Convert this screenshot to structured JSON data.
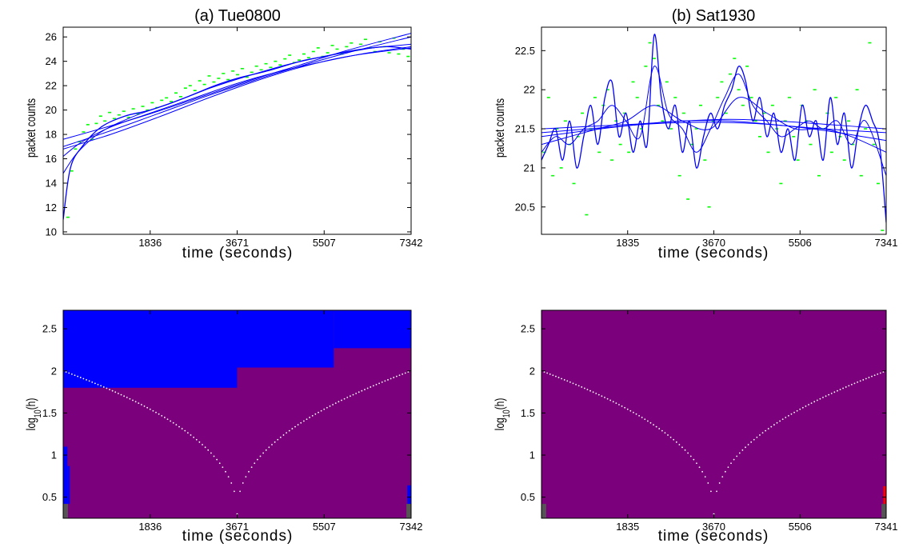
{
  "chart_data": [
    {
      "type": "scatter",
      "title": "(a) Tue0800",
      "xlabel": "time (seconds)",
      "ylabel": "packet counts",
      "xlim": [
        0,
        7342
      ],
      "ylim": [
        9.8,
        26.8
      ],
      "xticks": [
        1836,
        3671,
        5507,
        7342
      ],
      "yticks": [
        10,
        12,
        14,
        16,
        18,
        20,
        22,
        24,
        26
      ],
      "colors": {
        "points": "#00ff00",
        "curves": "#0000ff"
      },
      "points": {
        "name": "",
        "x": [
          100,
          180,
          260,
          340,
          430,
          520,
          610,
          700,
          790,
          880,
          980,
          1080,
          1180,
          1280,
          1380,
          1480,
          1580,
          1680,
          1780,
          1880,
          1980,
          2080,
          2180,
          2280,
          2380,
          2480,
          2580,
          2680,
          2780,
          2880,
          2980,
          3080,
          3180,
          3280,
          3380,
          3480,
          3580,
          3680,
          3780,
          3880,
          3980,
          4080,
          4180,
          4280,
          4380,
          4480,
          4580,
          4680,
          4780,
          4880,
          4980,
          5080,
          5180,
          5280,
          5380,
          5480,
          5580,
          5680,
          5780,
          5880,
          5980,
          6080,
          6180,
          6280,
          6380,
          6480,
          6580,
          6680,
          6780,
          6880,
          6980,
          7080,
          7180,
          7280
        ],
        "y": [
          11.2,
          15.0,
          16.8,
          17.4,
          18.2,
          18.8,
          17.6,
          18.9,
          19.5,
          19.1,
          19.8,
          19.3,
          19.6,
          19.9,
          19.4,
          20.1,
          19.7,
          20.3,
          20.0,
          20.6,
          20.2,
          20.8,
          21.0,
          20.7,
          21.4,
          21.1,
          21.8,
          22.0,
          21.6,
          22.4,
          22.1,
          22.8,
          22.3,
          22.6,
          23.0,
          22.5,
          23.2,
          22.9,
          23.4,
          22.7,
          23.1,
          23.6,
          23.3,
          23.8,
          23.5,
          24.0,
          23.7,
          24.2,
          24.5,
          23.9,
          24.1,
          24.6,
          24.3,
          24.8,
          25.1,
          24.4,
          24.7,
          25.3,
          25.0,
          24.6,
          25.2,
          25.5,
          24.9,
          25.4,
          25.8,
          25.1,
          24.8,
          25.6,
          25.2,
          24.7,
          25.9,
          24.6,
          25.0,
          24.4
        ]
      },
      "smooths": [
        {
          "name": "",
          "x": [
            0,
            150,
            400,
            800,
            1300,
            1836,
            2500,
            3200,
            3671,
            4300,
            5000,
            5507,
            6200,
            6800,
            7342
          ],
          "y": [
            11.0,
            15.2,
            17.0,
            18.6,
            19.5,
            20.0,
            20.9,
            22.0,
            22.6,
            23.2,
            24.0,
            24.4,
            24.9,
            25.2,
            25.0
          ]
        },
        {
          "name": "",
          "x": [
            0,
            300,
            800,
            1500,
            2300,
            3100,
            3900,
            4700,
            5500,
            6300,
            7342
          ],
          "y": [
            14.8,
            16.5,
            18.2,
            19.5,
            20.6,
            21.8,
            22.8,
            23.7,
            24.4,
            25.0,
            25.4
          ]
        },
        {
          "name": "",
          "x": [
            0,
            400,
            1000,
            1800,
            2700,
            3600,
            4500,
            5400,
            6300,
            7342
          ],
          "y": [
            16.2,
            17.4,
            18.6,
            19.7,
            20.9,
            22.1,
            23.1,
            23.9,
            24.6,
            25.2
          ]
        },
        {
          "name": "",
          "x": [
            0,
            1000,
            2000,
            3000,
            4000,
            5000,
            6000,
            7342
          ],
          "y": [
            17.0,
            18.3,
            19.7,
            21.1,
            22.4,
            23.6,
            24.7,
            26.0
          ]
        },
        {
          "name": "",
          "x": [
            0,
            1000,
            2000,
            3000,
            4000,
            5000,
            6000,
            7342
          ],
          "y": [
            17.6,
            18.7,
            19.9,
            21.2,
            22.5,
            23.7,
            24.9,
            26.3
          ]
        },
        {
          "name": "",
          "x": [
            0,
            1000,
            2000,
            3000,
            4000,
            5000,
            6000,
            7342
          ],
          "y": [
            16.8,
            18.0,
            19.4,
            20.9,
            22.3,
            23.5,
            24.4,
            25.1
          ]
        }
      ]
    },
    {
      "type": "scatter",
      "title": "(b) Sat1930",
      "xlabel": "time (seconds)",
      "ylabel": "packet counts",
      "xlim": [
        0,
        7341
      ],
      "ylim": [
        20.15,
        22.8
      ],
      "xticks": [
        1835,
        3670,
        5506,
        7341
      ],
      "yticks": [
        20.5,
        21,
        21.5,
        22,
        22.5
      ],
      "colors": {
        "points": "#00ff00",
        "curves": "#0000ff"
      },
      "points": {
        "name": "",
        "x": [
          60,
          150,
          240,
          330,
          420,
          510,
          600,
          690,
          780,
          870,
          960,
          1050,
          1140,
          1230,
          1320,
          1410,
          1500,
          1590,
          1680,
          1770,
          1860,
          1950,
          2040,
          2130,
          2220,
          2310,
          2400,
          2490,
          2580,
          2670,
          2760,
          2850,
          2940,
          3030,
          3120,
          3210,
          3300,
          3390,
          3480,
          3570,
          3660,
          3750,
          3840,
          3930,
          4020,
          4110,
          4200,
          4290,
          4380,
          4470,
          4560,
          4650,
          4740,
          4830,
          4920,
          5010,
          5100,
          5190,
          5280,
          5370,
          5460,
          5550,
          5640,
          5730,
          5820,
          5910,
          6000,
          6090,
          6180,
          6270,
          6360,
          6450,
          6540,
          6630,
          6720,
          6810,
          6900,
          6990,
          7080,
          7170,
          7260
        ],
        "y": [
          21.2,
          21.9,
          20.9,
          21.5,
          21.0,
          21.6,
          21.3,
          20.8,
          21.4,
          21.7,
          20.4,
          21.5,
          21.9,
          21.2,
          21.8,
          22.0,
          21.1,
          21.6,
          21.3,
          21.7,
          21.2,
          22.1,
          21.9,
          21.5,
          22.3,
          22.6,
          22.4,
          21.8,
          21.6,
          22.1,
          21.5,
          21.9,
          20.9,
          21.7,
          20.6,
          21.3,
          21.5,
          21.8,
          21.1,
          20.5,
          21.6,
          21.9,
          22.1,
          21.7,
          22.2,
          22.4,
          22.0,
          21.8,
          22.3,
          21.9,
          21.6,
          21.4,
          21.7,
          21.2,
          21.8,
          21.5,
          20.8,
          21.6,
          21.9,
          21.4,
          21.1,
          21.8,
          21.6,
          21.3,
          22.0,
          20.9,
          21.5,
          21.7,
          21.2,
          21.9,
          21.4,
          21.1,
          21.6,
          21.3,
          22.0,
          20.9,
          21.5,
          22.6,
          21.3,
          20.8,
          20.2
        ]
      },
      "smooths": [
        {
          "name": "",
          "x": [
            0,
            150,
            300,
            450,
            600,
            750,
            900,
            1050,
            1200,
            1350,
            1500,
            1650,
            1800,
            1950,
            2100,
            2250,
            2400,
            2550,
            2700,
            2850,
            3000,
            3150,
            3300,
            3450,
            3600,
            3750,
            3900,
            4050,
            4200,
            4350,
            4500,
            4650,
            4800,
            4950,
            5100,
            5250,
            5400,
            5550,
            5700,
            5850,
            6000,
            6150,
            6300,
            6450,
            6600,
            6750,
            6900,
            7050,
            7200,
            7341
          ],
          "y": [
            21.1,
            21.3,
            21.5,
            21.1,
            21.6,
            21.0,
            21.4,
            21.8,
            21.3,
            21.9,
            22.1,
            21.4,
            21.7,
            21.2,
            21.6,
            21.3,
            22.7,
            21.9,
            21.5,
            21.8,
            21.2,
            21.6,
            21.0,
            21.4,
            21.7,
            21.5,
            21.8,
            22.0,
            22.3,
            22.1,
            21.6,
            21.9,
            21.4,
            21.7,
            21.2,
            21.5,
            21.1,
            21.8,
            21.4,
            21.6,
            21.1,
            21.9,
            21.3,
            21.7,
            21.0,
            21.5,
            21.8,
            21.6,
            21.3,
            20.3
          ]
        },
        {
          "name": "",
          "x": [
            0,
            300,
            600,
            900,
            1200,
            1500,
            1800,
            2100,
            2400,
            2700,
            3000,
            3300,
            3600,
            3900,
            4200,
            4500,
            4800,
            5100,
            5400,
            5700,
            6000,
            6300,
            6600,
            6900,
            7341
          ],
          "y": [
            21.2,
            21.4,
            21.3,
            21.5,
            21.6,
            21.8,
            21.6,
            21.4,
            22.3,
            21.7,
            21.5,
            21.2,
            21.5,
            21.9,
            22.2,
            21.8,
            21.6,
            21.4,
            21.5,
            21.6,
            21.5,
            21.6,
            21.3,
            21.6,
            20.9
          ]
        },
        {
          "name": "",
          "x": [
            0,
            600,
            1200,
            1800,
            2400,
            3000,
            3600,
            4200,
            4800,
            5400,
            6000,
            6600,
            7341
          ],
          "y": [
            21.3,
            21.4,
            21.5,
            21.6,
            21.8,
            21.6,
            21.5,
            21.9,
            21.7,
            21.5,
            21.5,
            21.4,
            21.2
          ]
        },
        {
          "name": "",
          "x": [
            0,
            1000,
            2000,
            3000,
            4000,
            5000,
            6000,
            7341
          ],
          "y": [
            21.45,
            21.5,
            21.55,
            21.6,
            21.6,
            21.55,
            21.5,
            21.45
          ]
        },
        {
          "name": "",
          "x": [
            0,
            1000,
            2000,
            3000,
            4000,
            5000,
            6000,
            7341
          ],
          "y": [
            21.4,
            21.48,
            21.55,
            21.58,
            21.58,
            21.55,
            21.48,
            21.35
          ]
        },
        {
          "name": "",
          "x": [
            0,
            1000,
            2000,
            3000,
            4000,
            5000,
            6000,
            7341
          ],
          "y": [
            21.5,
            21.53,
            21.56,
            21.6,
            21.62,
            21.6,
            21.56,
            21.5
          ]
        }
      ]
    },
    {
      "type": "heatmap",
      "title": "",
      "xlabel": "time (seconds)",
      "ylabel": "log10(h)",
      "xlim": [
        0,
        7342
      ],
      "ylim": [
        0.25,
        2.72
      ],
      "xticks": [
        1836,
        3671,
        5507,
        7342
      ],
      "yticks": [
        0.5,
        1,
        1.5,
        2,
        2.5
      ],
      "colors": {
        "base": "#7b007b",
        "blue": "#0000ff",
        "grey": "#555555",
        "dots": "#ffffff"
      },
      "regions": [
        {
          "color": "blue",
          "x0": 0,
          "x1": 3671,
          "y0": 1.8,
          "y1": 2.72
        },
        {
          "color": "blue",
          "x0": 3671,
          "x1": 5710,
          "y0": 2.04,
          "y1": 2.72
        },
        {
          "color": "blue",
          "x0": 5710,
          "x1": 7342,
          "y0": 2.27,
          "y1": 2.72
        },
        {
          "color": "blue",
          "x0": 0,
          "x1": 90,
          "y0": 0.42,
          "y1": 1.1
        },
        {
          "color": "blue",
          "x0": 90,
          "x1": 140,
          "y0": 0.42,
          "y1": 0.87
        },
        {
          "color": "blue",
          "x0": 7262,
          "x1": 7342,
          "y0": 0.42,
          "y1": 0.64
        },
        {
          "color": "grey",
          "x0": 0,
          "x1": 100,
          "y0": 0.25,
          "y1": 0.42
        },
        {
          "color": "grey",
          "x0": 7242,
          "x1": 7342,
          "y0": 0.25,
          "y1": 0.42
        }
      ],
      "cone": {
        "center": 3671,
        "base": 0.3,
        "top": 2.0
      }
    },
    {
      "type": "heatmap",
      "title": "",
      "xlabel": "time (seconds)",
      "ylabel": "log10(h)",
      "xlim": [
        0,
        7341
      ],
      "ylim": [
        0.25,
        2.72
      ],
      "xticks": [
        1835,
        3670,
        5506,
        7341
      ],
      "yticks": [
        0.5,
        1,
        1.5,
        2,
        2.5
      ],
      "colors": {
        "base": "#7b007b",
        "red": "#ff0000",
        "grey": "#555555",
        "dots": "#ffffff"
      },
      "regions": [
        {
          "color": "grey",
          "x0": 0,
          "x1": 100,
          "y0": 0.25,
          "y1": 0.42
        },
        {
          "color": "grey",
          "x0": 7241,
          "x1": 7341,
          "y0": 0.25,
          "y1": 0.42
        },
        {
          "color": "red",
          "x0": 7281,
          "x1": 7341,
          "y0": 0.42,
          "y1": 0.63
        }
      ],
      "cone": {
        "center": 3670,
        "base": 0.3,
        "top": 2.0
      }
    }
  ]
}
